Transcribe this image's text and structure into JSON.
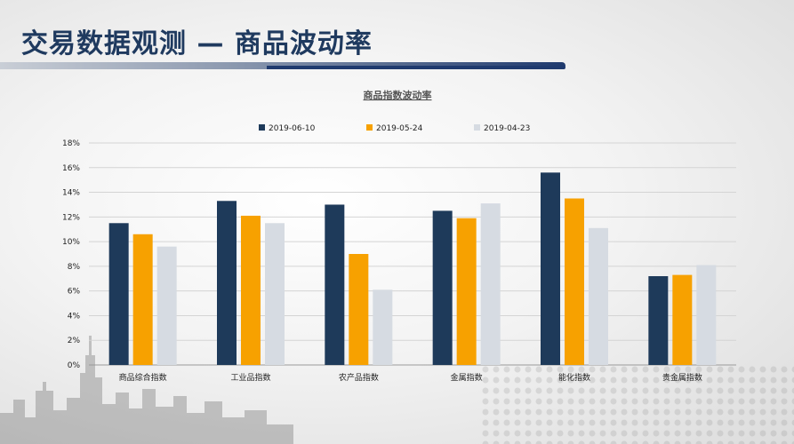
{
  "page": {
    "title": "交易数据观测 — 商品波动率"
  },
  "colors": {
    "series1": "#1e3a5a",
    "series2": "#f7a100",
    "series3": "#d6dbe2",
    "title": "#1f3a5f"
  },
  "chart_data": {
    "type": "bar",
    "title": "商品指数波动率",
    "categories": [
      "商品综合指数",
      "工业品指数",
      "农产品指数",
      "金属指数",
      "能化指数",
      "贵金属指数"
    ],
    "series": [
      {
        "name": "2019-06-10",
        "color": "#1e3a5a",
        "values": [
          11.5,
          13.3,
          13.0,
          12.5,
          15.6,
          7.2
        ]
      },
      {
        "name": "2019-05-24",
        "color": "#f7a100",
        "values": [
          10.6,
          12.1,
          9.0,
          11.9,
          13.5,
          7.3
        ]
      },
      {
        "name": "2019-04-23",
        "color": "#d6dbe2",
        "values": [
          9.6,
          11.5,
          6.1,
          13.1,
          11.1,
          8.1
        ]
      }
    ],
    "ylim": [
      0,
      18
    ],
    "yticks": [
      "0%",
      "2%",
      "4%",
      "6%",
      "8%",
      "10%",
      "12%",
      "14%",
      "16%",
      "18%"
    ],
    "grid": true,
    "legend_position": "top"
  }
}
